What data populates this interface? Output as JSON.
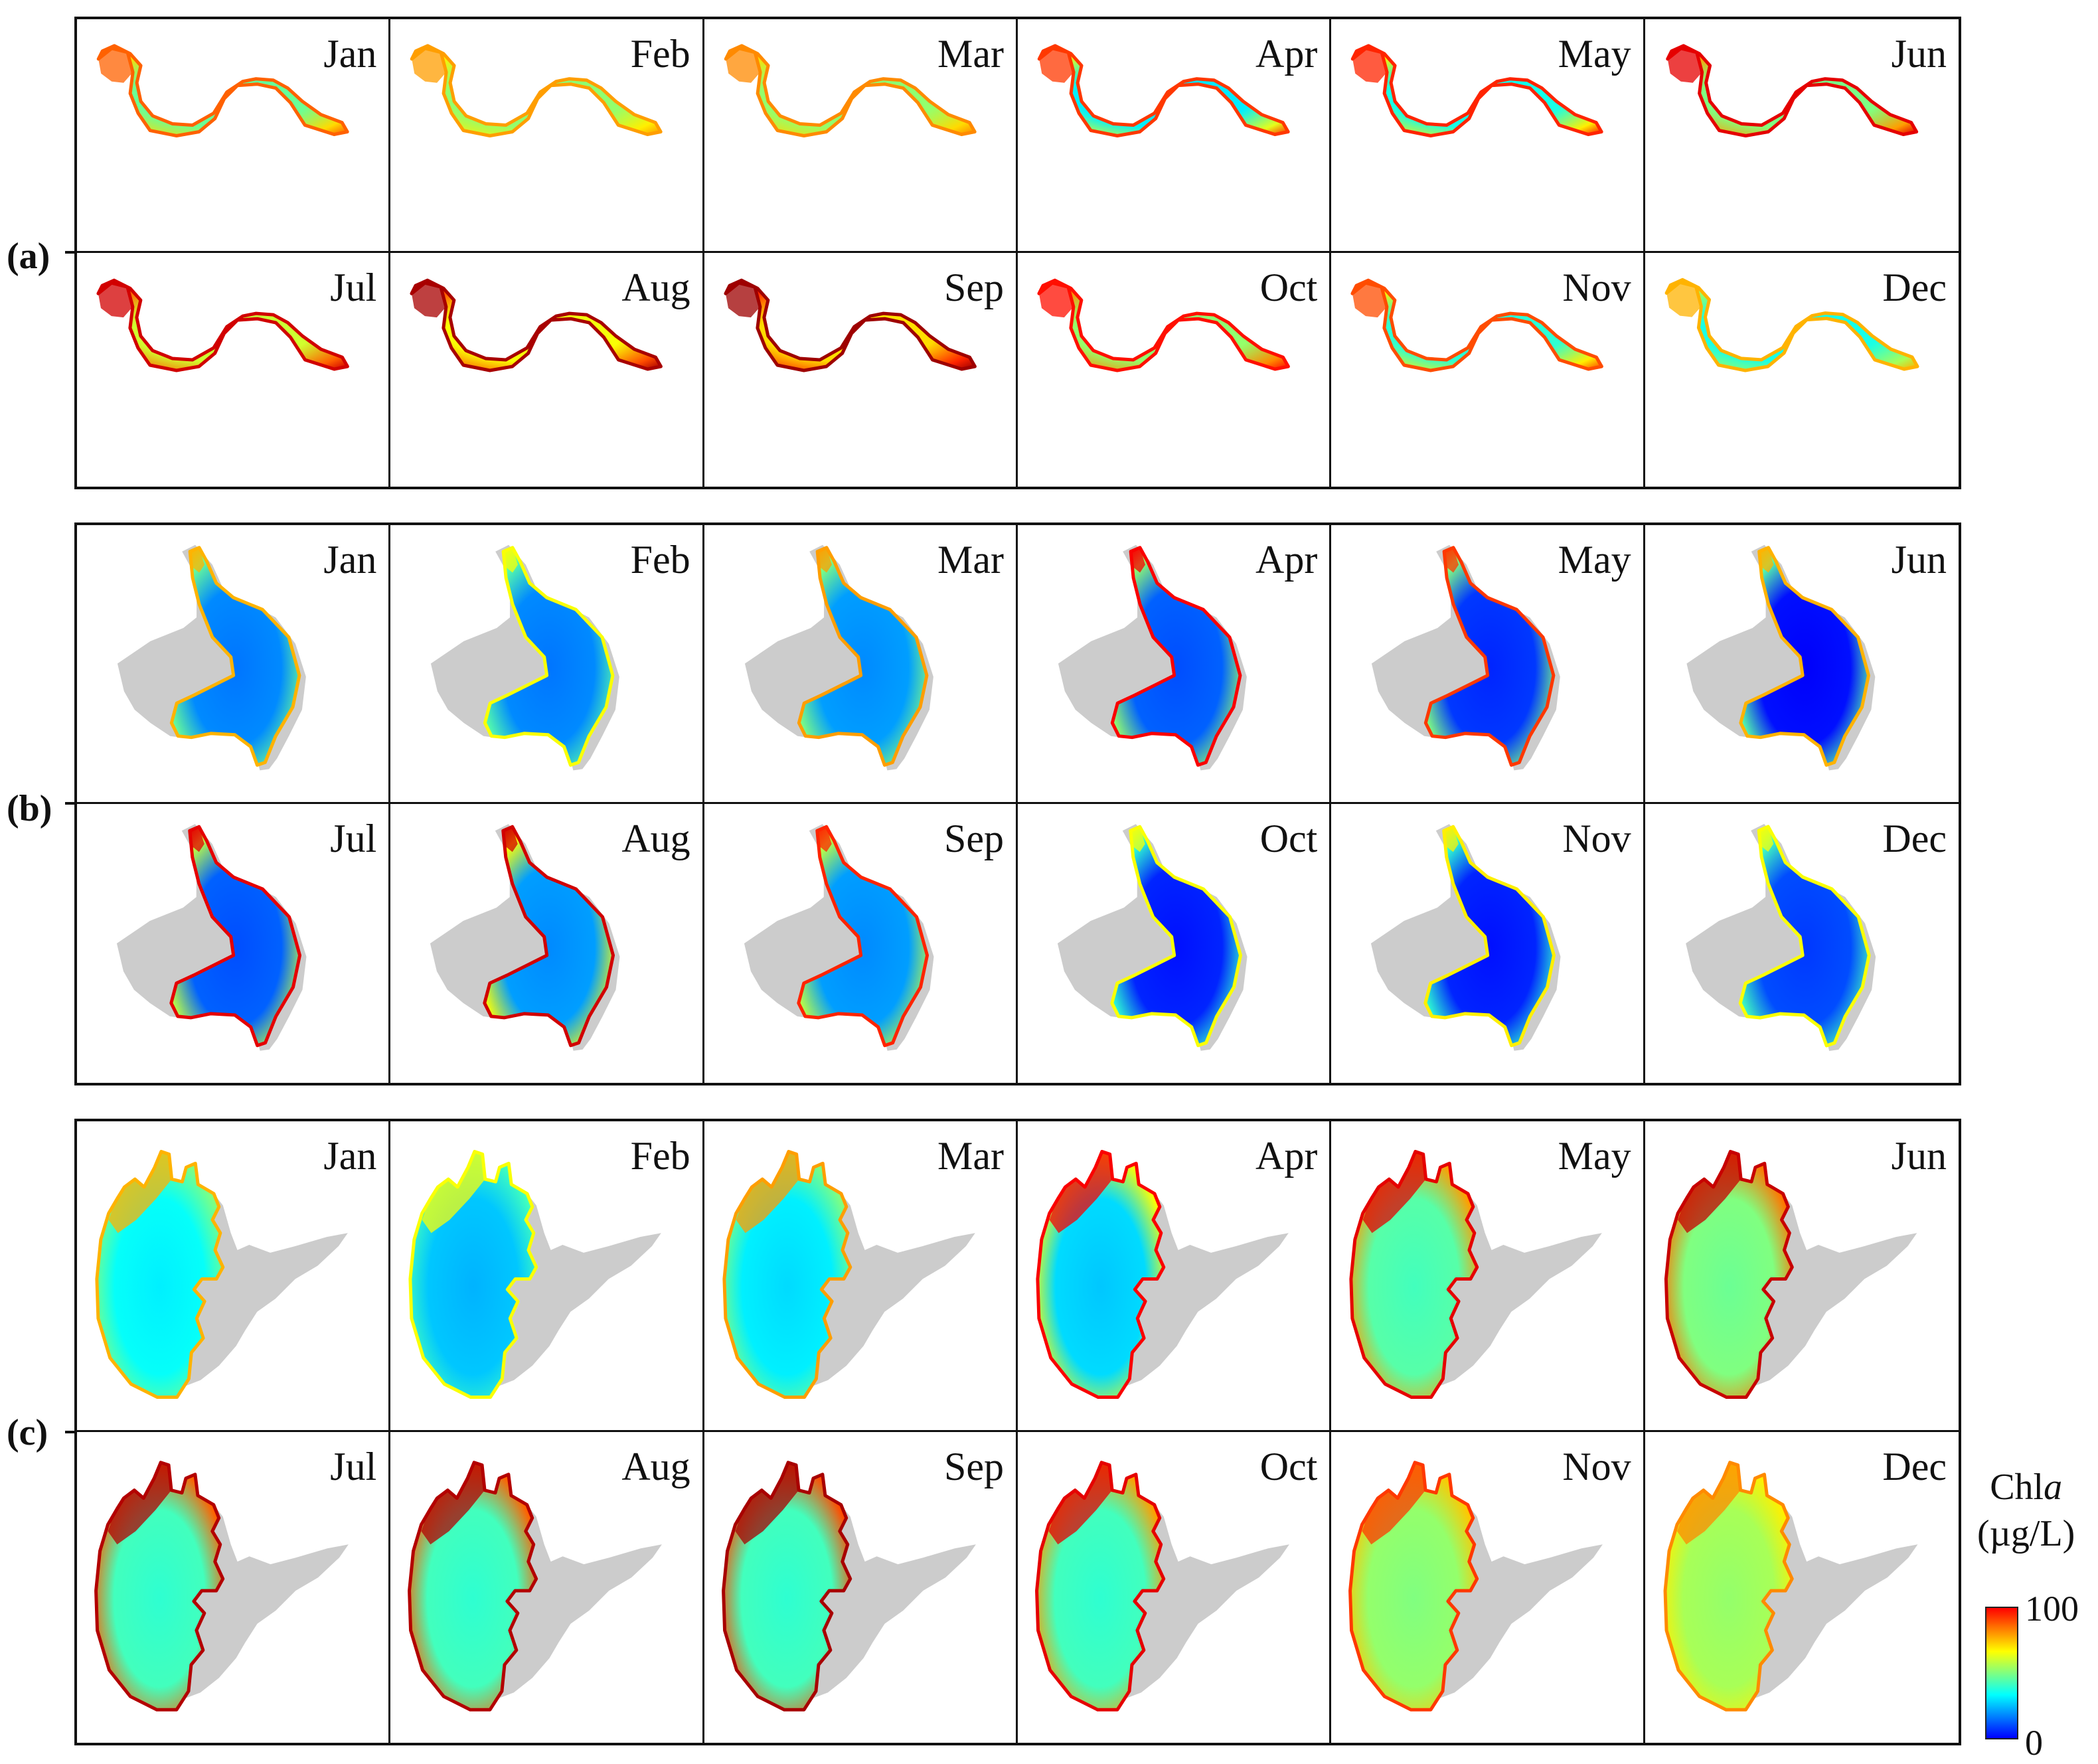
{
  "figure": {
    "panels": [
      {
        "label": "(a)",
        "lake": "a",
        "months": [
          {
            "name": "Jan",
            "bulk": 0.46,
            "edge": 0.66,
            "hot": 0.78
          },
          {
            "name": "Feb",
            "bulk": 0.5,
            "edge": 0.64,
            "hot": 0.72
          },
          {
            "name": "Mar",
            "bulk": 0.5,
            "edge": 0.66,
            "hot": 0.74
          },
          {
            "name": "Apr",
            "bulk": 0.34,
            "edge": 0.6,
            "hot": 0.82
          },
          {
            "name": "May",
            "bulk": 0.38,
            "edge": 0.64,
            "hot": 0.84
          },
          {
            "name": "Jun",
            "bulk": 0.48,
            "edge": 0.72,
            "hot": 0.9
          },
          {
            "name": "Jul",
            "bulk": 0.56,
            "edge": 0.78,
            "hot": 0.92
          },
          {
            "name": "Aug",
            "bulk": 0.6,
            "edge": 0.8,
            "hot": 0.96
          },
          {
            "name": "Sep",
            "bulk": 0.64,
            "edge": 0.84,
            "hot": 0.97
          },
          {
            "name": "Oct",
            "bulk": 0.5,
            "edge": 0.74,
            "hot": 0.86
          },
          {
            "name": "Nov",
            "bulk": 0.4,
            "edge": 0.64,
            "hot": 0.8
          },
          {
            "name": "Dec",
            "bulk": 0.38,
            "edge": 0.54,
            "hot": 0.7
          }
        ]
      },
      {
        "label": "(b)",
        "lake": "b",
        "months": [
          {
            "name": "Jan",
            "bulk": 0.24,
            "edge": 0.48,
            "hot": 0.7
          },
          {
            "name": "Feb",
            "bulk": 0.24,
            "edge": 0.46,
            "hot": 0.62
          },
          {
            "name": "Mar",
            "bulk": 0.26,
            "edge": 0.5,
            "hot": 0.72
          },
          {
            "name": "Apr",
            "bulk": 0.2,
            "edge": 0.52,
            "hot": 0.88
          },
          {
            "name": "May",
            "bulk": 0.16,
            "edge": 0.5,
            "hot": 0.82
          },
          {
            "name": "Jun",
            "bulk": 0.12,
            "edge": 0.46,
            "hot": 0.7
          },
          {
            "name": "Jul",
            "bulk": 0.2,
            "edge": 0.56,
            "hot": 0.9
          },
          {
            "name": "Aug",
            "bulk": 0.26,
            "edge": 0.62,
            "hot": 0.92
          },
          {
            "name": "Sep",
            "bulk": 0.26,
            "edge": 0.56,
            "hot": 0.84
          },
          {
            "name": "Oct",
            "bulk": 0.14,
            "edge": 0.42,
            "hot": 0.62
          },
          {
            "name": "Nov",
            "bulk": 0.14,
            "edge": 0.42,
            "hot": 0.64
          },
          {
            "name": "Dec",
            "bulk": 0.18,
            "edge": 0.44,
            "hot": 0.62
          }
        ]
      },
      {
        "label": "(c)",
        "lake": "c",
        "months": [
          {
            "name": "Jan",
            "bulk": 0.36,
            "edge": 0.5,
            "hot": 0.7
          },
          {
            "name": "Feb",
            "bulk": 0.3,
            "edge": 0.44,
            "hot": 0.62
          },
          {
            "name": "Mar",
            "bulk": 0.34,
            "edge": 0.5,
            "hot": 0.72
          },
          {
            "name": "Apr",
            "bulk": 0.32,
            "edge": 0.62,
            "hot": 0.88
          },
          {
            "name": "May",
            "bulk": 0.44,
            "edge": 0.72,
            "hot": 0.9
          },
          {
            "name": "Jun",
            "bulk": 0.48,
            "edge": 0.76,
            "hot": 0.93
          },
          {
            "name": "Jul",
            "bulk": 0.42,
            "edge": 0.78,
            "hot": 0.95
          },
          {
            "name": "Aug",
            "bulk": 0.42,
            "edge": 0.78,
            "hot": 0.95
          },
          {
            "name": "Sep",
            "bulk": 0.42,
            "edge": 0.8,
            "hot": 0.96
          },
          {
            "name": "Oct",
            "bulk": 0.42,
            "edge": 0.72,
            "hot": 0.9
          },
          {
            "name": "Nov",
            "bulk": 0.5,
            "edge": 0.68,
            "hot": 0.82
          },
          {
            "name": "Dec",
            "bulk": 0.52,
            "edge": 0.64,
            "hot": 0.74
          }
        ]
      }
    ]
  },
  "colorbar": {
    "title_main": "Chl",
    "title_var": "a",
    "units": "(µg/L)",
    "max_label": "100",
    "min_label": "0",
    "colormap": [
      "#0000ff",
      "#0080ff",
      "#00ffff",
      "#80ff80",
      "#ffff00",
      "#ff8000",
      "#ff0000"
    ]
  },
  "mask_color": "#cccccc"
}
